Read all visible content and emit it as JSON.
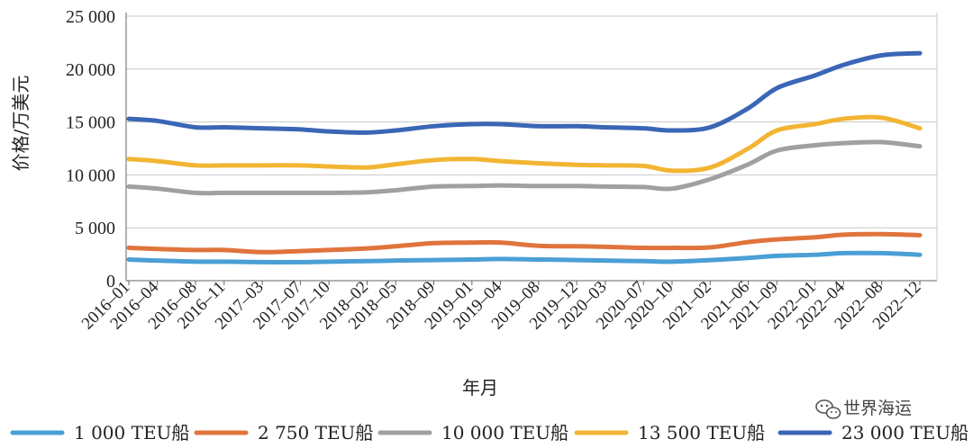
{
  "chart_data": {
    "type": "line",
    "xlabel": "年月",
    "ylabel": "价格/万美元",
    "ylim": [
      0,
      25000
    ],
    "y_ticks": [
      "0",
      "5 000",
      "10 000",
      "15 000",
      "20 000",
      "25 000"
    ],
    "y_tick_values": [
      0,
      5000,
      10000,
      15000,
      20000,
      25000
    ],
    "grid": true,
    "legend_position": "bottom",
    "x_start": "2016-01",
    "x_end": "2022-12",
    "x_ticks": [
      "2016–01",
      "2016–04",
      "2016–08",
      "2016–11",
      "2017–03",
      "2017–07",
      "2017–10",
      "2018–02",
      "2018–05",
      "2018–09",
      "2019–01",
      "2019–04",
      "2019–08",
      "2019–12",
      "2020–03",
      "2020–07",
      "2020–10",
      "2021–02",
      "2021–06",
      "2021–09",
      "2022–01",
      "2022–04",
      "2022–08",
      "2022–12"
    ],
    "x_tick_dates": [
      "2016-01",
      "2016-04",
      "2016-08",
      "2016-11",
      "2017-03",
      "2017-07",
      "2017-10",
      "2018-02",
      "2018-05",
      "2018-09",
      "2019-01",
      "2019-04",
      "2019-08",
      "2019-12",
      "2020-03",
      "2020-07",
      "2020-10",
      "2021-02",
      "2021-06",
      "2021-09",
      "2022-01",
      "2022-04",
      "2022-08",
      "2022-12"
    ],
    "series": [
      {
        "name": "1 000 TEU船",
        "color": "#4a9fd4",
        "points": [
          [
            "2016-01",
            2000
          ],
          [
            "2016-04",
            1900
          ],
          [
            "2016-08",
            1800
          ],
          [
            "2016-11",
            1800
          ],
          [
            "2017-03",
            1750
          ],
          [
            "2017-07",
            1750
          ],
          [
            "2017-10",
            1800
          ],
          [
            "2018-02",
            1850
          ],
          [
            "2018-05",
            1900
          ],
          [
            "2018-09",
            1950
          ],
          [
            "2019-01",
            2000
          ],
          [
            "2019-04",
            2050
          ],
          [
            "2019-08",
            2000
          ],
          [
            "2019-12",
            1950
          ],
          [
            "2020-03",
            1900
          ],
          [
            "2020-07",
            1850
          ],
          [
            "2020-10",
            1800
          ],
          [
            "2021-02",
            1950
          ],
          [
            "2021-06",
            2150
          ],
          [
            "2021-09",
            2350
          ],
          [
            "2022-01",
            2450
          ],
          [
            "2022-04",
            2600
          ],
          [
            "2022-08",
            2600
          ],
          [
            "2022-12",
            2450
          ]
        ]
      },
      {
        "name": "2 750 TEU船",
        "color": "#e0743c",
        "points": [
          [
            "2016-01",
            3100
          ],
          [
            "2016-04",
            3000
          ],
          [
            "2016-08",
            2900
          ],
          [
            "2016-11",
            2900
          ],
          [
            "2017-03",
            2700
          ],
          [
            "2017-07",
            2800
          ],
          [
            "2017-10",
            2900
          ],
          [
            "2018-02",
            3050
          ],
          [
            "2018-05",
            3250
          ],
          [
            "2018-09",
            3550
          ],
          [
            "2019-01",
            3600
          ],
          [
            "2019-04",
            3600
          ],
          [
            "2019-08",
            3300
          ],
          [
            "2019-12",
            3250
          ],
          [
            "2020-03",
            3200
          ],
          [
            "2020-07",
            3100
          ],
          [
            "2020-10",
            3100
          ],
          [
            "2021-02",
            3150
          ],
          [
            "2021-06",
            3650
          ],
          [
            "2021-09",
            3900
          ],
          [
            "2022-01",
            4100
          ],
          [
            "2022-04",
            4350
          ],
          [
            "2022-08",
            4400
          ],
          [
            "2022-12",
            4300
          ]
        ]
      },
      {
        "name": "10 000 TEU船",
        "color": "#a0a0a0",
        "points": [
          [
            "2016-01",
            8900
          ],
          [
            "2016-04",
            8700
          ],
          [
            "2016-08",
            8300
          ],
          [
            "2016-11",
            8300
          ],
          [
            "2017-03",
            8300
          ],
          [
            "2017-07",
            8300
          ],
          [
            "2017-10",
            8300
          ],
          [
            "2018-02",
            8350
          ],
          [
            "2018-05",
            8550
          ],
          [
            "2018-09",
            8900
          ],
          [
            "2019-01",
            8950
          ],
          [
            "2019-04",
            9000
          ],
          [
            "2019-08",
            8950
          ],
          [
            "2019-12",
            8950
          ],
          [
            "2020-03",
            8900
          ],
          [
            "2020-07",
            8850
          ],
          [
            "2020-10",
            8700
          ],
          [
            "2021-02",
            9600
          ],
          [
            "2021-06",
            11000
          ],
          [
            "2021-09",
            12300
          ],
          [
            "2022-01",
            12800
          ],
          [
            "2022-04",
            13000
          ],
          [
            "2022-08",
            13100
          ],
          [
            "2022-12",
            12700
          ]
        ]
      },
      {
        "name": "13 500 TEU船",
        "color": "#f2b533",
        "points": [
          [
            "2016-01",
            11500
          ],
          [
            "2016-04",
            11300
          ],
          [
            "2016-08",
            10900
          ],
          [
            "2016-11",
            10900
          ],
          [
            "2017-03",
            10900
          ],
          [
            "2017-07",
            10900
          ],
          [
            "2017-10",
            10800
          ],
          [
            "2018-02",
            10700
          ],
          [
            "2018-05",
            11000
          ],
          [
            "2018-09",
            11400
          ],
          [
            "2019-01",
            11500
          ],
          [
            "2019-04",
            11300
          ],
          [
            "2019-08",
            11100
          ],
          [
            "2019-12",
            10950
          ],
          [
            "2020-03",
            10900
          ],
          [
            "2020-07",
            10850
          ],
          [
            "2020-10",
            10400
          ],
          [
            "2021-02",
            10700
          ],
          [
            "2021-06",
            12500
          ],
          [
            "2021-09",
            14200
          ],
          [
            "2022-01",
            14800
          ],
          [
            "2022-04",
            15300
          ],
          [
            "2022-08",
            15400
          ],
          [
            "2022-12",
            14400
          ]
        ]
      },
      {
        "name": "23 000 TEU船",
        "color": "#3a66b5",
        "points": [
          [
            "2016-01",
            15300
          ],
          [
            "2016-04",
            15100
          ],
          [
            "2016-08",
            14500
          ],
          [
            "2016-11",
            14500
          ],
          [
            "2017-03",
            14400
          ],
          [
            "2017-07",
            14300
          ],
          [
            "2017-10",
            14100
          ],
          [
            "2018-02",
            14000
          ],
          [
            "2018-05",
            14200
          ],
          [
            "2018-09",
            14600
          ],
          [
            "2019-01",
            14800
          ],
          [
            "2019-04",
            14800
          ],
          [
            "2019-08",
            14600
          ],
          [
            "2019-12",
            14600
          ],
          [
            "2020-03",
            14500
          ],
          [
            "2020-07",
            14400
          ],
          [
            "2020-10",
            14200
          ],
          [
            "2021-02",
            14500
          ],
          [
            "2021-06",
            16300
          ],
          [
            "2021-09",
            18200
          ],
          [
            "2022-01",
            19400
          ],
          [
            "2022-04",
            20400
          ],
          [
            "2022-08",
            21300
          ],
          [
            "2022-12",
            21500
          ]
        ]
      }
    ]
  },
  "watermark": {
    "text": "世界海运",
    "icon": "wechat-icon"
  }
}
